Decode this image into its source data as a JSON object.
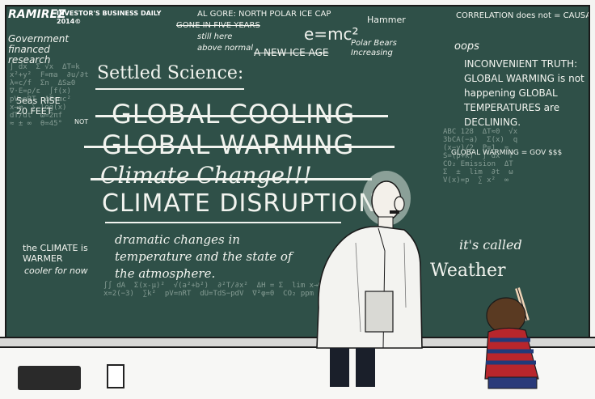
{
  "credit": {
    "artist": "RAMIREZ",
    "publication": "INVESTOR'S BUSINESS DAILY",
    "year": "2014©"
  },
  "top_notes": {
    "gore": "AL GORE: NORTH POLAR ICE CAP",
    "gone": "GONE IN FIVE YEARS",
    "still_here": "still here",
    "above_normal": "above normal",
    "emc": "e=mc²",
    "ice_age": "A NEW ICE AGE",
    "hammer": "Hammer",
    "polar_bears": "Polar Bears Increasing",
    "correlation": "CORRELATION does not = CAUSATION",
    "oops": "oops"
  },
  "left_notes": {
    "government": "Government financed research",
    "seas_rise": "Seas RISE 20 FEET",
    "not": "NOT",
    "the_climate": "the CLIMATE is WARMER",
    "cooler": "cooler for now"
  },
  "settled_science": "Settled Science:",
  "terms": {
    "global_cooling": "GLOBAL COOLING",
    "global_warming": "GLOBAL WARMING",
    "climate_change": "Climate Change!!!",
    "climate_disruption": "CLIMATE DISRUPTION"
  },
  "definition": "dramatic changes in temperature and the state of the atmosphere.",
  "right_notes": {
    "inconvenient": "INCONVENIENT TRUTH: GLOBAL WARMING is not happening GLOBAL TEMPERATURES are DECLINING.",
    "gw_equals": "GLOBAL WARMING = GOV $$$"
  },
  "kid_text": {
    "its_called": "it's called",
    "weather": "Weather"
  },
  "colors": {
    "board": "#2f5048",
    "chalk": "#f2f4ef",
    "lab_coat": "#f3f3f0",
    "shirt_red": "#b8262c",
    "shirt_blue": "#203a7a"
  }
}
